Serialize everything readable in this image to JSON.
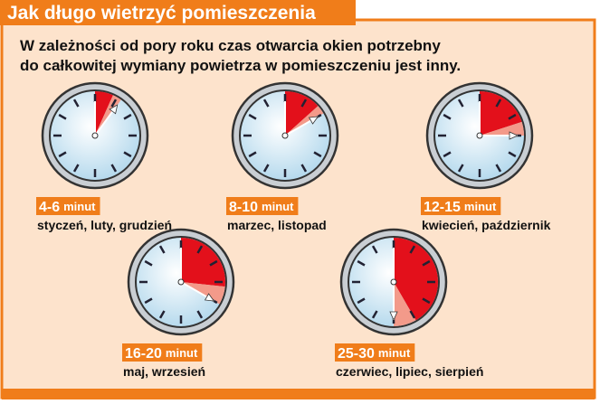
{
  "header": {
    "title": "Jak długo wietrzyć pomieszczenia"
  },
  "intro": [
    "W zależności od pory roku czas otwarcia okien potrzebny",
    "do całkowitej wymiany powietrza w pomieszczeniu jest inny."
  ],
  "clocks": [
    {
      "range": "4-6",
      "unit": "minut",
      "months": "styczeń, luty, grudzień",
      "minutes": [
        4,
        6
      ]
    },
    {
      "range": "8-10",
      "unit": "minut",
      "months": "marzec, listopad",
      "minutes": [
        8,
        10
      ]
    },
    {
      "range": "12-15",
      "unit": "minut",
      "months": "kwiecień, październik",
      "minutes": [
        12,
        15
      ]
    },
    {
      "range": "16-20",
      "unit": "minut",
      "months": "maj, wrzesień",
      "minutes": [
        16,
        20
      ]
    },
    {
      "range": "25-30",
      "unit": "minut",
      "months": "czerwiec, lipiec, sierpień",
      "minutes": [
        25,
        30
      ]
    }
  ]
}
